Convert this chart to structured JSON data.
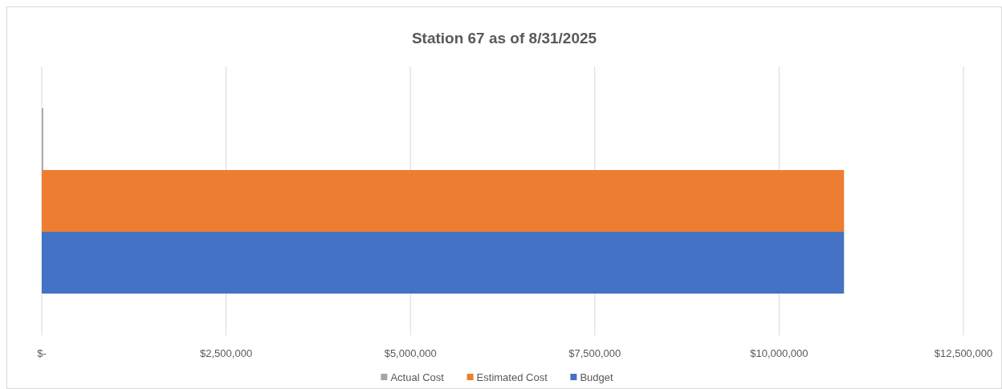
{
  "chart_data": {
    "type": "bar",
    "orientation": "horizontal",
    "title": "Station 67 as of 8/31/2025",
    "categories": [
      null
    ],
    "series": [
      {
        "name": "Actual Cost",
        "color": "#a5a5a5",
        "values": [
          20000
        ]
      },
      {
        "name": "Estimated Cost",
        "color": "#ed7d31",
        "values": [
          10880000
        ]
      },
      {
        "name": "Budget",
        "color": "#4472c4",
        "values": [
          10880000
        ]
      }
    ],
    "xlim": [
      0,
      12500000
    ],
    "xticks": [
      {
        "value": 0,
        "label": "$-"
      },
      {
        "value": 2500000,
        "label": "$2,500,000"
      },
      {
        "value": 5000000,
        "label": "$5,000,000"
      },
      {
        "value": 7500000,
        "label": "$7,500,000"
      },
      {
        "value": 10000000,
        "label": "$10,000,000"
      },
      {
        "value": 12500000,
        "label": "$12,500,000"
      }
    ],
    "grid": "x",
    "legend": "bottom"
  }
}
